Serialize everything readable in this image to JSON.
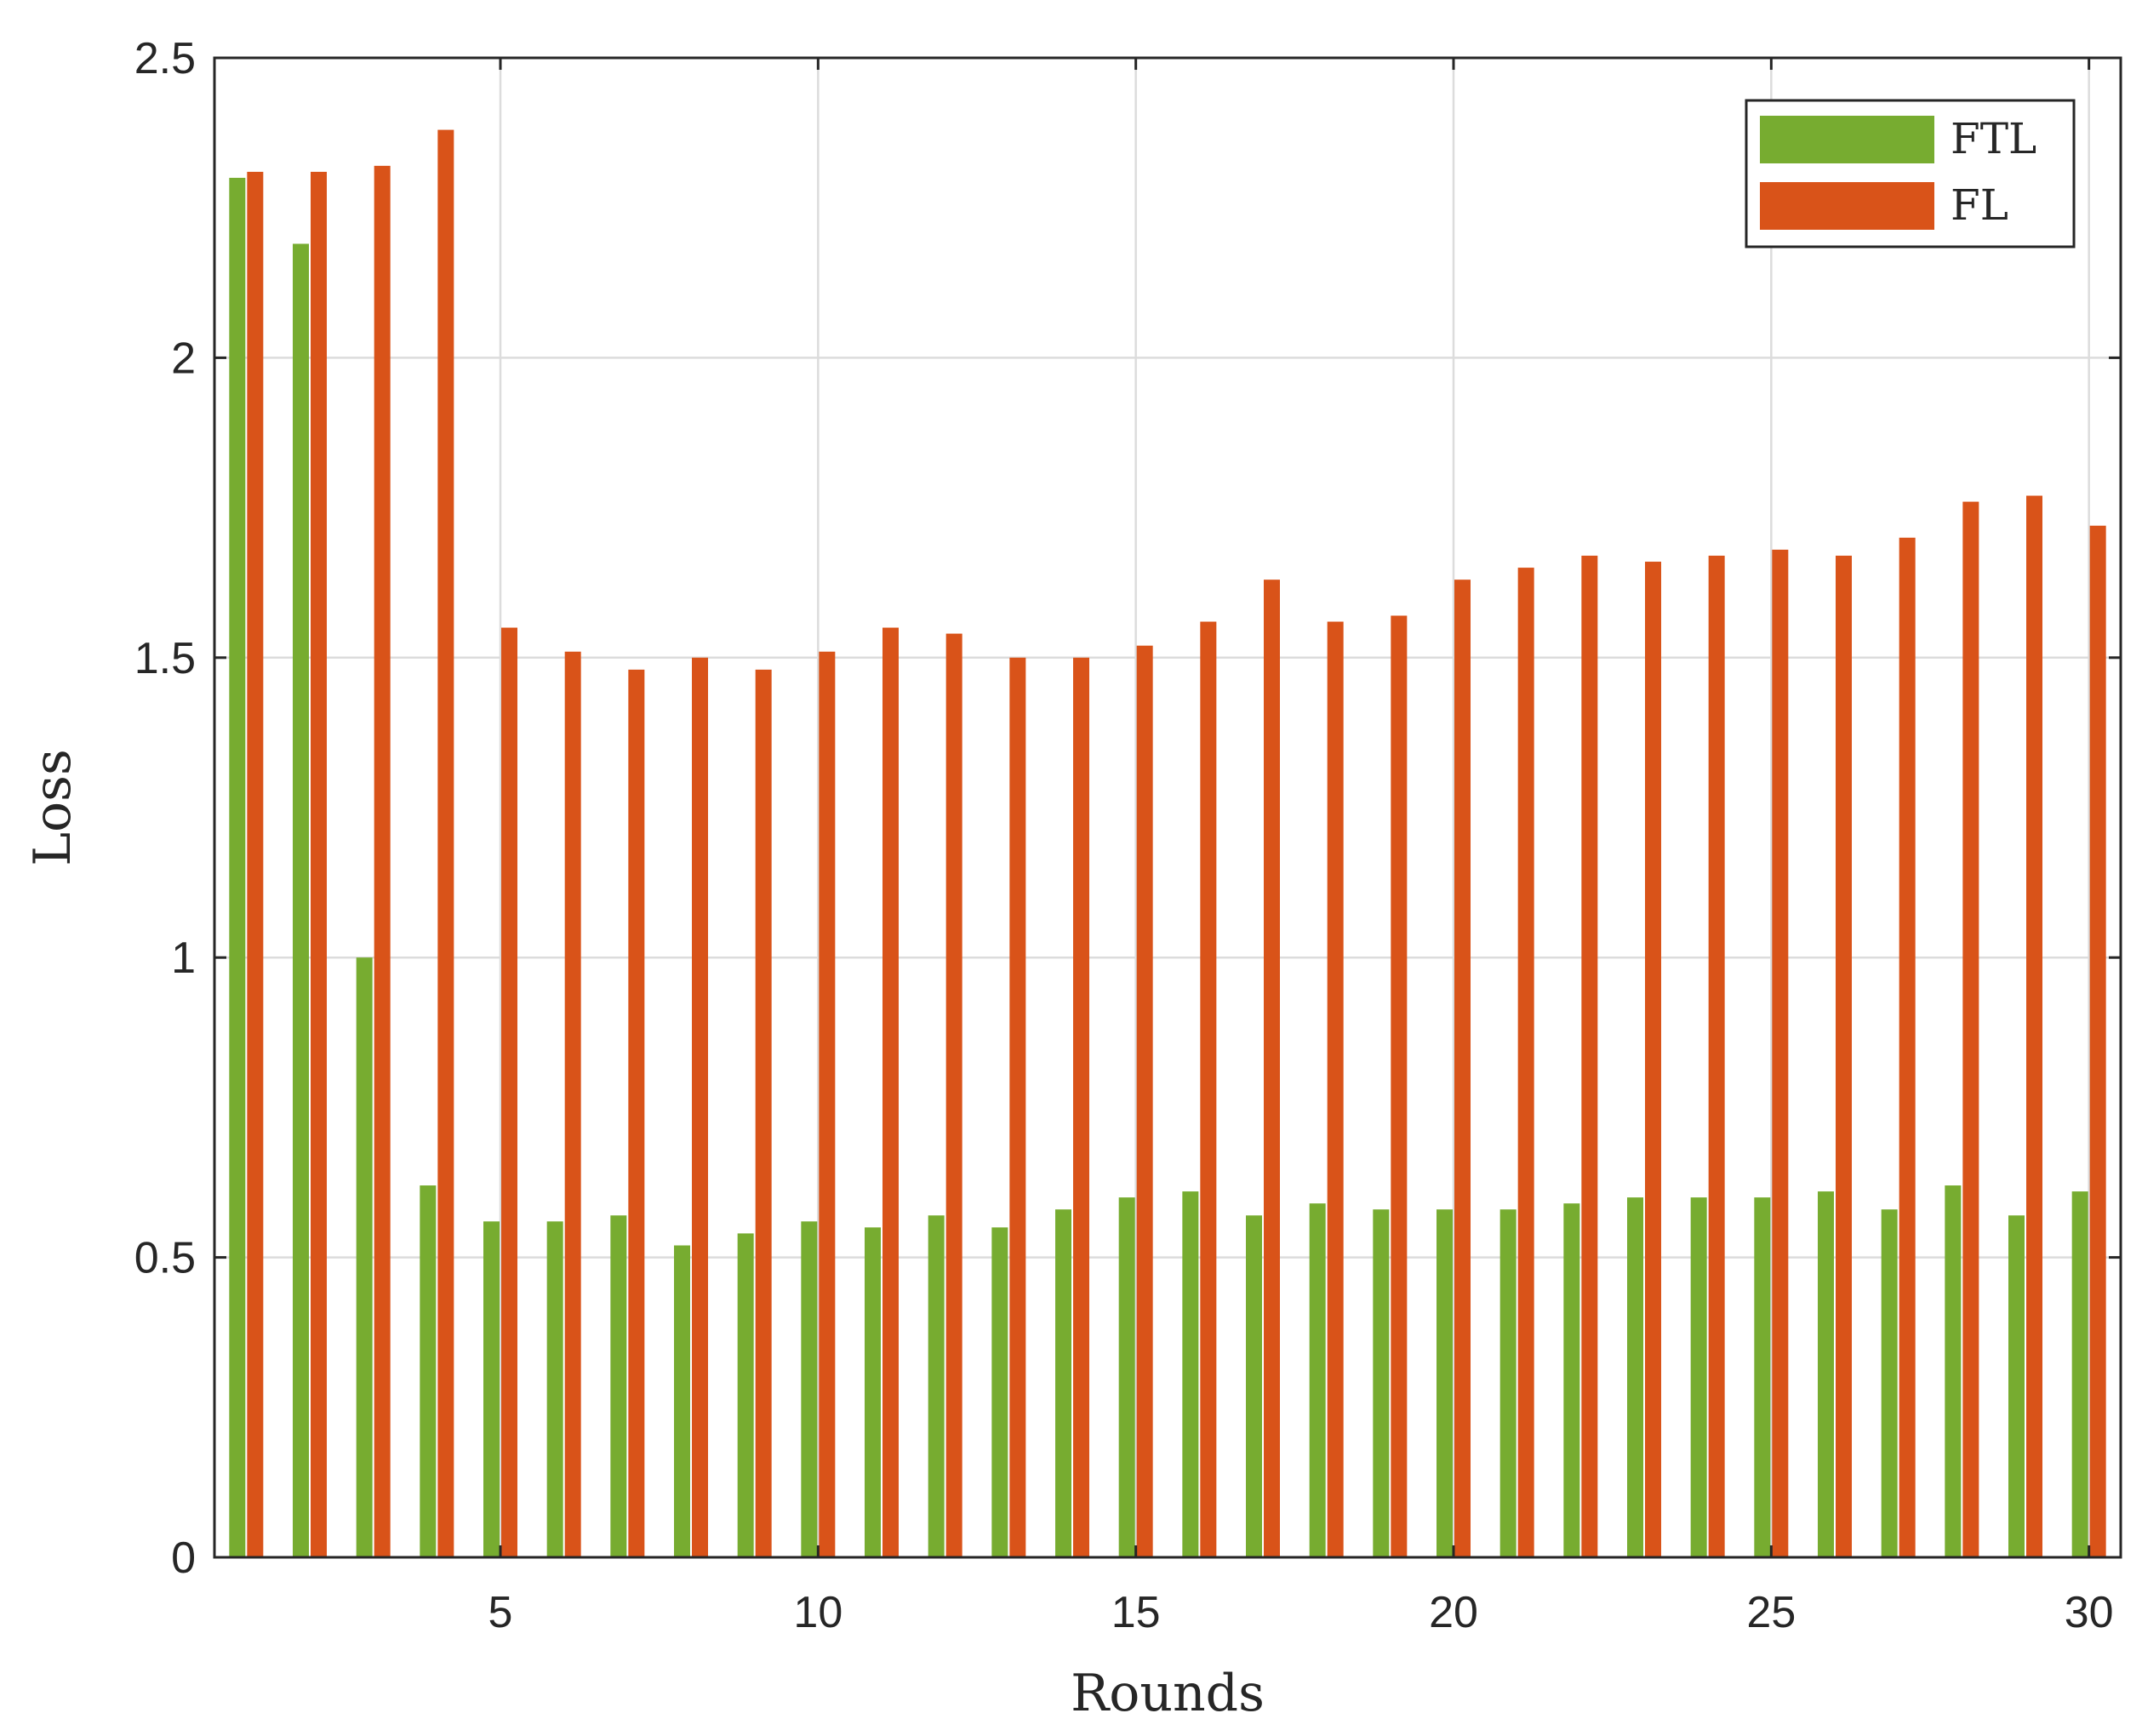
{
  "chart_data": {
    "type": "bar",
    "title": "",
    "xlabel": "Rounds",
    "ylabel": "Loss",
    "x": [
      1,
      2,
      3,
      4,
      5,
      6,
      7,
      8,
      9,
      10,
      11,
      12,
      13,
      14,
      15,
      16,
      17,
      18,
      19,
      20,
      21,
      22,
      23,
      24,
      25,
      26,
      27,
      28,
      29,
      30
    ],
    "xticks": [
      5,
      10,
      15,
      20,
      25,
      30
    ],
    "yticks": [
      0,
      0.5,
      1,
      1.5,
      2,
      2.5
    ],
    "ytick_labels": [
      "0",
      "0.5",
      "1",
      "1.5",
      "2",
      "2.5"
    ],
    "ylim": [
      0,
      2.5
    ],
    "grid": true,
    "legend_position": "top-right",
    "series": [
      {
        "name": "FTL",
        "color": "#77AC30",
        "values": [
          2.3,
          2.19,
          1.0,
          0.62,
          0.56,
          0.56,
          0.57,
          0.52,
          0.54,
          0.56,
          0.55,
          0.57,
          0.55,
          0.58,
          0.6,
          0.61,
          0.57,
          0.59,
          0.58,
          0.58,
          0.58,
          0.59,
          0.6,
          0.6,
          0.6,
          0.61,
          0.58,
          0.62,
          0.57,
          0.61
        ]
      },
      {
        "name": "FL",
        "color": "#D95319",
        "values": [
          2.31,
          2.31,
          2.32,
          2.38,
          1.55,
          1.51,
          1.48,
          1.5,
          1.48,
          1.51,
          1.55,
          1.54,
          1.5,
          1.5,
          1.52,
          1.56,
          1.63,
          1.56,
          1.57,
          1.63,
          1.65,
          1.67,
          1.66,
          1.67,
          1.68,
          1.67,
          1.7,
          1.76,
          1.77,
          1.72
        ]
      }
    ]
  }
}
